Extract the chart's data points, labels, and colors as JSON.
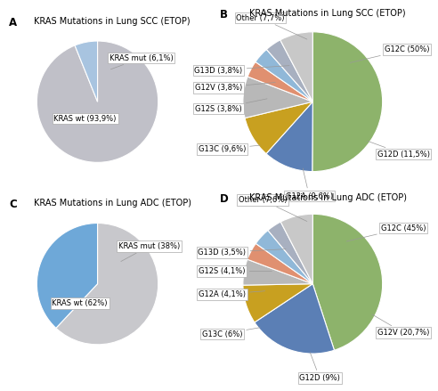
{
  "panel_A": {
    "title": "KRAS Mutations in Lung SCC (ETOP)",
    "label": "A",
    "slices": [
      93.9,
      6.1
    ],
    "colors": [
      "#c0c0c8",
      "#a8c4e0"
    ],
    "startangle": 90
  },
  "panel_B": {
    "title": "KRAS Mutations in Lung SCC (ETOP)",
    "label": "B",
    "slices": [
      50,
      11.5,
      9.6,
      9.6,
      3.8,
      3.8,
      3.8,
      7.7
    ],
    "slice_order": [
      "G12C",
      "G12D",
      "G12A",
      "G13C",
      "G12S",
      "G12V",
      "G13D",
      "Other"
    ],
    "labels_B": [
      "G12C (50%)",
      "G12D (11,5%)",
      "G12A (9,6%)",
      "G13C (9,6%)",
      "G12S (3,8%)",
      "G12V (3,8%)",
      "G13D (3,8%)",
      "Other (7,7%)"
    ],
    "colors": [
      "#8db36b",
      "#5b7fb5",
      "#c8a020",
      "#b8b8b8",
      "#e09070",
      "#90b8d8",
      "#a8b0c0",
      "#c8c8c8"
    ],
    "startangle": 90
  },
  "panel_C": {
    "title": "KRAS Mutations in Lung ADC (ETOP)",
    "label": "C",
    "slices": [
      62,
      38
    ],
    "colors": [
      "#c8c8cc",
      "#6ea8d8"
    ],
    "startangle": 90
  },
  "panel_D": {
    "title": "KRAS Mutations in Lung ADC (ETOP)",
    "label": "D",
    "slices": [
      45,
      20.7,
      9,
      6,
      4.1,
      4.1,
      3.5,
      7.6
    ],
    "slice_order": [
      "G12C",
      "G12V",
      "G12D",
      "G13C",
      "G12A",
      "G12S",
      "G13D",
      "Other"
    ],
    "labels_D": [
      "G12C (45%)",
      "G12V (20,7%)",
      "G12D (9%)",
      "G13C (6%)",
      "G12A (4,1%)",
      "G12S (4,1%)",
      "G13D (3,5%)",
      "Other (7,6%)"
    ],
    "colors": [
      "#8db36b",
      "#5b7fb5",
      "#c8a020",
      "#b8b8b8",
      "#e09070",
      "#90b8d8",
      "#a8b0c0",
      "#c8c8c8"
    ],
    "startangle": 90
  },
  "bg_color": "#ffffff",
  "label_fontsize": 6.0,
  "title_fontsize": 7.0,
  "panel_label_fontsize": 8.5
}
